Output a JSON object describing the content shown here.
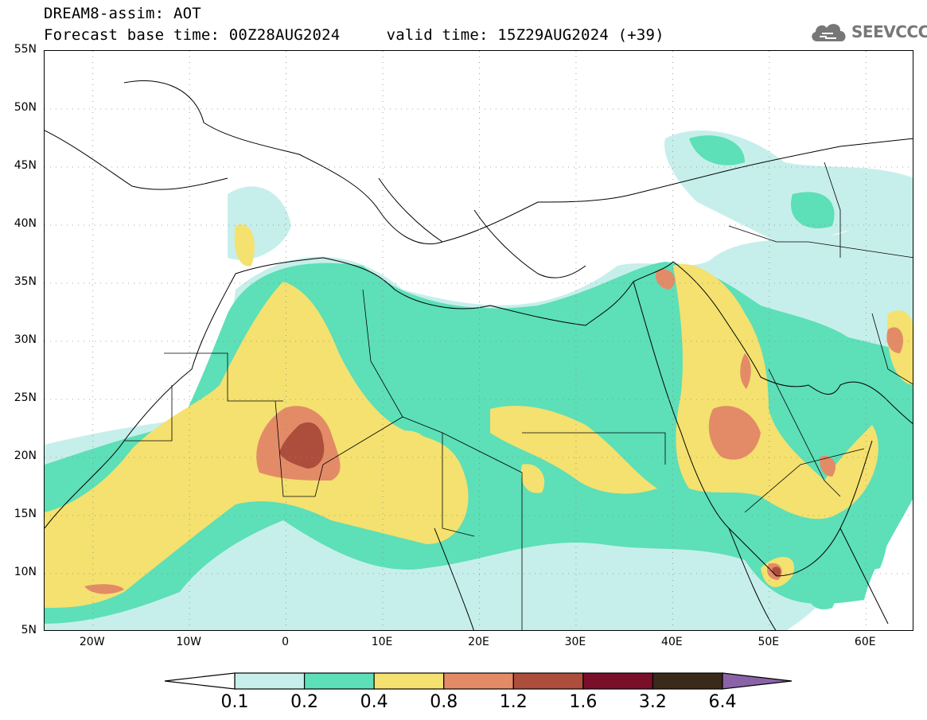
{
  "header": {
    "title_line1": "DREAM8-assim: AOT",
    "title_line2": "Forecast base time: 00Z28AUG2024     valid time: 15Z29AUG2024 (+39)"
  },
  "logo": {
    "text": "SEEVCCC",
    "icon": "cloud-icon"
  },
  "map": {
    "projection": "lat-lon",
    "lon_range": [
      -25,
      65
    ],
    "lat_range": [
      5,
      55
    ],
    "lat_labels": [
      "55N",
      "50N",
      "45N",
      "40N",
      "35N",
      "30N",
      "25N",
      "20N",
      "15N",
      "10N",
      "5N"
    ],
    "lon_labels": [
      "20W",
      "10W",
      "0",
      "10E",
      "20E",
      "30E",
      "40E",
      "50E",
      "60E"
    ],
    "grid": "dotted"
  },
  "legend": {
    "labels": [
      "0.1",
      "0.2",
      "0.4",
      "0.8",
      "1.2",
      "1.6",
      "3.2",
      "6.4"
    ],
    "colors": [
      "#c6efeb",
      "#5ddfb7",
      "#f4e16f",
      "#e38b67",
      "#ad4e3c",
      "#7a0f2a",
      "#3a2a1a"
    ],
    "below_color": "#ffffff",
    "above_color": "#8a63a6"
  }
}
